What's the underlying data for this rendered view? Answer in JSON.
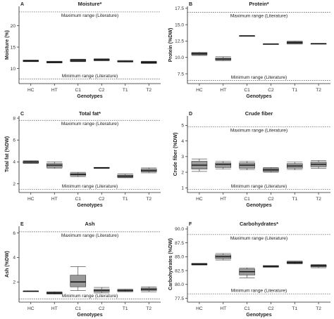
{
  "figure": {
    "x_categories": [
      "HC",
      "HT",
      "C1",
      "C2",
      "T1",
      "T2"
    ],
    "colors": {
      "box_fill": "#9a9a9a",
      "median": "#111111",
      "range_line": "#555555",
      "axis": "#222222"
    }
  },
  "chart_data": [
    {
      "type": "box",
      "letter": "A",
      "title": "Moisture*",
      "ylabel": "Moisture (%)",
      "xlabel": "Genotypes",
      "categories": [
        "HC",
        "HT",
        "C1",
        "C2",
        "T1",
        "T2"
      ],
      "ylim": [
        6.5,
        24.5
      ],
      "yticks": [
        10,
        15,
        20
      ],
      "range_max": {
        "value": 23.2,
        "label": "Maximum range (Literature)"
      },
      "range_min": {
        "value": 7.6,
        "label": "Minimum range (Literature)"
      },
      "boxes": [
        {
          "min": 11.6,
          "q1": 11.7,
          "median": 11.8,
          "q3": 11.9,
          "max": 12.0
        },
        {
          "min": 11.3,
          "q1": 11.4,
          "median": 11.5,
          "q3": 11.6,
          "max": 11.7
        },
        {
          "min": 11.6,
          "q1": 11.7,
          "median": 11.9,
          "q3": 12.1,
          "max": 12.2
        },
        {
          "min": 11.8,
          "q1": 11.9,
          "median": 12.05,
          "q3": 12.2,
          "max": 12.3
        },
        {
          "min": 11.5,
          "q1": 11.6,
          "median": 11.7,
          "q3": 11.8,
          "max": 11.9
        },
        {
          "min": 11.2,
          "q1": 11.3,
          "median": 11.45,
          "q3": 11.6,
          "max": 11.7
        }
      ]
    },
    {
      "type": "box",
      "letter": "B",
      "title": "Protein*",
      "ylabel": "Protein (%DW)",
      "xlabel": "Genotypes",
      "categories": [
        "HC",
        "HT",
        "C1",
        "C2",
        "T1",
        "T2"
      ],
      "ylim": [
        6.0,
        17.8
      ],
      "yticks": [
        7.5,
        10.0,
        12.5,
        15.0,
        17.5
      ],
      "yticklabels": [
        "7.5",
        "10.0",
        "12.5",
        "15.0",
        "17.5"
      ],
      "range_max": {
        "value": 16.9,
        "label": "Maximum range (Literature)"
      },
      "range_min": {
        "value": 6.5,
        "label": "Minimum range (Literature)"
      },
      "boxes": [
        {
          "min": 10.3,
          "q1": 10.4,
          "median": 10.55,
          "q3": 10.7,
          "max": 10.8
        },
        {
          "min": 9.5,
          "q1": 9.6,
          "median": 9.75,
          "q3": 9.9,
          "max": 10.1
        },
        {
          "min": 13.3,
          "q1": 13.3,
          "median": 13.3,
          "q3": 13.3,
          "max": 13.3
        },
        {
          "min": 12.05,
          "q1": 12.05,
          "median": 12.05,
          "q3": 12.05,
          "max": 12.05
        },
        {
          "min": 12.05,
          "q1": 12.1,
          "median": 12.25,
          "q3": 12.4,
          "max": 12.5
        },
        {
          "min": 12.1,
          "q1": 12.1,
          "median": 12.1,
          "q3": 12.1,
          "max": 12.1
        }
      ]
    },
    {
      "type": "box",
      "letter": "C",
      "title": "Total fat*",
      "ylabel": "Total fat (%DW)",
      "xlabel": "Genotypes",
      "categories": [
        "HC",
        "HT",
        "C1",
        "C2",
        "T1",
        "T2"
      ],
      "ylim": [
        1.2,
        8.2
      ],
      "yticks": [
        2,
        4,
        6,
        8
      ],
      "range_max": {
        "value": 7.8,
        "label": "Maximum range (Literature)"
      },
      "range_min": {
        "value": 1.5,
        "label": "Minimum range (Literature)"
      },
      "boxes": [
        {
          "min": 3.85,
          "q1": 3.9,
          "median": 4.0,
          "q3": 4.05,
          "max": 4.1
        },
        {
          "min": 3.4,
          "q1": 3.5,
          "median": 3.7,
          "q3": 3.85,
          "max": 4.0
        },
        {
          "min": 2.65,
          "q1": 2.75,
          "median": 2.85,
          "q3": 2.95,
          "max": 3.05
        },
        {
          "min": 3.4,
          "q1": 3.42,
          "median": 3.45,
          "q3": 3.48,
          "max": 3.5
        },
        {
          "min": 2.55,
          "q1": 2.6,
          "median": 2.7,
          "q3": 2.8,
          "max": 2.9
        },
        {
          "min": 3.0,
          "q1": 3.1,
          "median": 3.2,
          "q3": 3.35,
          "max": 3.45
        }
      ]
    },
    {
      "type": "box",
      "letter": "D",
      "title": "Crude fiber",
      "ylabel": "Crude fiber (%DW)",
      "xlabel": "Genotypes",
      "categories": [
        "HC",
        "HT",
        "C1",
        "C2",
        "T1",
        "T2"
      ],
      "ylim": [
        0.7,
        5.6
      ],
      "yticks": [
        1,
        2,
        3,
        4,
        5
      ],
      "range_max": {
        "value": 4.9,
        "label": "Maximum range (Literature)"
      },
      "range_min": {
        "value": 0.9,
        "label": "Minimum range (Literature)"
      },
      "boxes": [
        {
          "min": 2.05,
          "q1": 2.2,
          "median": 2.45,
          "q3": 2.7,
          "max": 2.85
        },
        {
          "min": 2.2,
          "q1": 2.3,
          "median": 2.5,
          "q3": 2.6,
          "max": 2.7
        },
        {
          "min": 2.15,
          "q1": 2.25,
          "median": 2.45,
          "q3": 2.6,
          "max": 2.7
        },
        {
          "min": 2.0,
          "q1": 2.05,
          "median": 2.15,
          "q3": 2.25,
          "max": 2.3
        },
        {
          "min": 2.15,
          "q1": 2.25,
          "median": 2.4,
          "q3": 2.55,
          "max": 2.65
        },
        {
          "min": 2.25,
          "q1": 2.35,
          "median": 2.5,
          "q3": 2.65,
          "max": 2.75
        }
      ]
    },
    {
      "type": "box",
      "letter": "E",
      "title": "Ash",
      "ylabel": "Ash (%DW)",
      "xlabel": "Genotypes",
      "categories": [
        "HC",
        "HT",
        "C1",
        "C2",
        "T1",
        "T2"
      ],
      "ylim": [
        0.35,
        6.55
      ],
      "yticks": [
        2,
        4,
        6
      ],
      "range_max": {
        "value": 6.1,
        "label": "Maximum range (Literature)"
      },
      "range_min": {
        "value": 0.6,
        "label": "Minimum range (Literature)"
      },
      "boxes": [
        {
          "min": 1.25,
          "q1": 1.25,
          "median": 1.25,
          "q3": 1.25,
          "max": 1.25
        },
        {
          "min": 1.0,
          "q1": 1.05,
          "median": 1.1,
          "q3": 1.15,
          "max": 1.2
        },
        {
          "min": 1.3,
          "q1": 1.6,
          "median": 2.0,
          "q3": 2.55,
          "max": 3.25
        },
        {
          "min": 1.1,
          "q1": 1.2,
          "median": 1.3,
          "q3": 1.4,
          "max": 1.55
        },
        {
          "min": 1.2,
          "q1": 1.25,
          "median": 1.3,
          "q3": 1.35,
          "max": 1.4
        },
        {
          "min": 1.2,
          "q1": 1.3,
          "median": 1.4,
          "q3": 1.5,
          "max": 1.6
        }
      ]
    },
    {
      "type": "box",
      "letter": "F",
      "title": "Carbohydrates*",
      "ylabel": "Carbohydrates (%DW)",
      "xlabel": "Genotypes",
      "categories": [
        "HC",
        "HT",
        "C1",
        "C2",
        "T1",
        "T2"
      ],
      "ylim": [
        76.8,
        90.5
      ],
      "yticks": [
        77.5,
        80.0,
        82.5,
        85.0,
        87.5,
        90.0
      ],
      "yticklabels": [
        "77.5",
        "80.0",
        "82.5",
        "85.0",
        "87.5",
        "90.0"
      ],
      "range_max": {
        "value": 89.0,
        "label": "Maximum range (Literature)"
      },
      "range_min": {
        "value": 78.3,
        "label": "Minimum range (Literature)"
      },
      "boxes": [
        {
          "min": 83.5,
          "q1": 83.55,
          "median": 83.65,
          "q3": 83.75,
          "max": 83.8
        },
        {
          "min": 84.4,
          "q1": 84.65,
          "median": 85.0,
          "q3": 85.35,
          "max": 85.6
        },
        {
          "min": 81.2,
          "q1": 81.7,
          "median": 82.3,
          "q3": 82.8,
          "max": 83.0
        },
        {
          "min": 83.1,
          "q1": 83.15,
          "median": 83.25,
          "q3": 83.35,
          "max": 83.4
        },
        {
          "min": 83.7,
          "q1": 83.8,
          "median": 83.95,
          "q3": 84.1,
          "max": 84.2
        },
        {
          "min": 83.0,
          "q1": 83.15,
          "median": 83.35,
          "q3": 83.5,
          "max": 83.6
        }
      ]
    }
  ]
}
